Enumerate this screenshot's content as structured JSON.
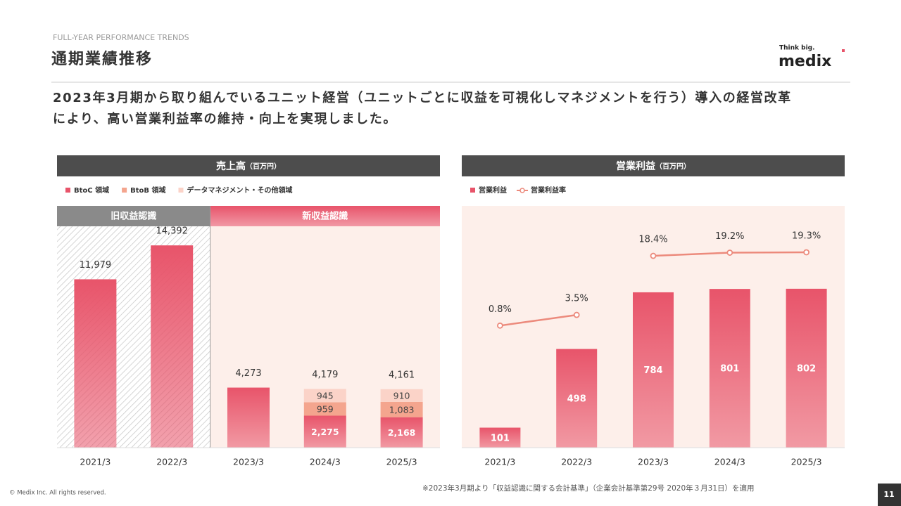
{
  "header": {
    "kicker": "FULL-YEAR PERFORMANCE TRENDS",
    "title": "通期業績推移",
    "logo_tag": "Think big.",
    "logo": "medix"
  },
  "lead": [
    "2023年3月期から取り組んでいるユニット経営（ユニットごとに収益を可視化しマネジメントを行う）導入の経営改革",
    "により、高い営業利益率の維持・向上を実現しました。"
  ],
  "chart_data": [
    {
      "type": "stacked_bar",
      "title": "売上高",
      "unit": "（百万円）",
      "categories": [
        "2021/3",
        "2022/3",
        "2023/3",
        "2024/3",
        "2025/3"
      ],
      "series": [
        {
          "name": "BtoC 領域",
          "color": "#e8546a",
          "values": [
            11979,
            14392,
            4273,
            2275,
            2168
          ],
          "value_labels": [
            null,
            null,
            null,
            "2,275",
            "2,168"
          ]
        },
        {
          "name": "BtoB 領域",
          "color": "#f4a58e",
          "values": [
            null,
            null,
            null,
            959,
            1083
          ],
          "value_labels": [
            null,
            null,
            null,
            "959",
            "1,083"
          ]
        },
        {
          "name": "データマネジメント・その他領域",
          "color": "#fbd3c8",
          "values": [
            null,
            null,
            null,
            945,
            910
          ],
          "value_labels": [
            null,
            null,
            null,
            "945",
            "910"
          ]
        }
      ],
      "totals": [
        11979,
        14392,
        4273,
        4179,
        4161
      ],
      "total_labels": [
        "11,979",
        "14,392",
        "4,273",
        "4,179",
        "4,161"
      ],
      "regions": [
        {
          "label": "旧収益認識",
          "from": "2021/3",
          "to": "2022/3",
          "color": "#8a8a8a"
        },
        {
          "label": "新収益認識",
          "from": "2023/3",
          "to": "2025/3",
          "color": "#e8546a"
        }
      ],
      "ylim": [
        0,
        17200
      ]
    },
    {
      "type": "bar_line",
      "title": "営業利益",
      "unit": "（百万円）",
      "categories": [
        "2021/3",
        "2022/3",
        "2023/3",
        "2024/3",
        "2025/3"
      ],
      "series": [
        {
          "name": "営業利益",
          "color": "#e8546a",
          "values": [
            101,
            498,
            784,
            801,
            802
          ]
        },
        {
          "name": "営業利益率",
          "color": "#ec8a7c",
          "axis": "y2",
          "values": [
            0.8,
            3.5,
            18.4,
            19.2,
            19.3
          ],
          "value_labels": [
            "0.8%",
            "3.5%",
            "18.4%",
            "19.2%",
            "19.3%"
          ],
          "line_break_after": "2022/3"
        }
      ],
      "ylim": [
        0,
        1220
      ],
      "y2lim": [
        -30,
        31
      ]
    }
  ],
  "footer": {
    "copyright": "© Medix Inc. All rights reserved.",
    "note": "※2023年3月期より「収益認識に関する会計基準」（企業会計基準第29号 2020年３月31日）を適用",
    "page": "11"
  }
}
